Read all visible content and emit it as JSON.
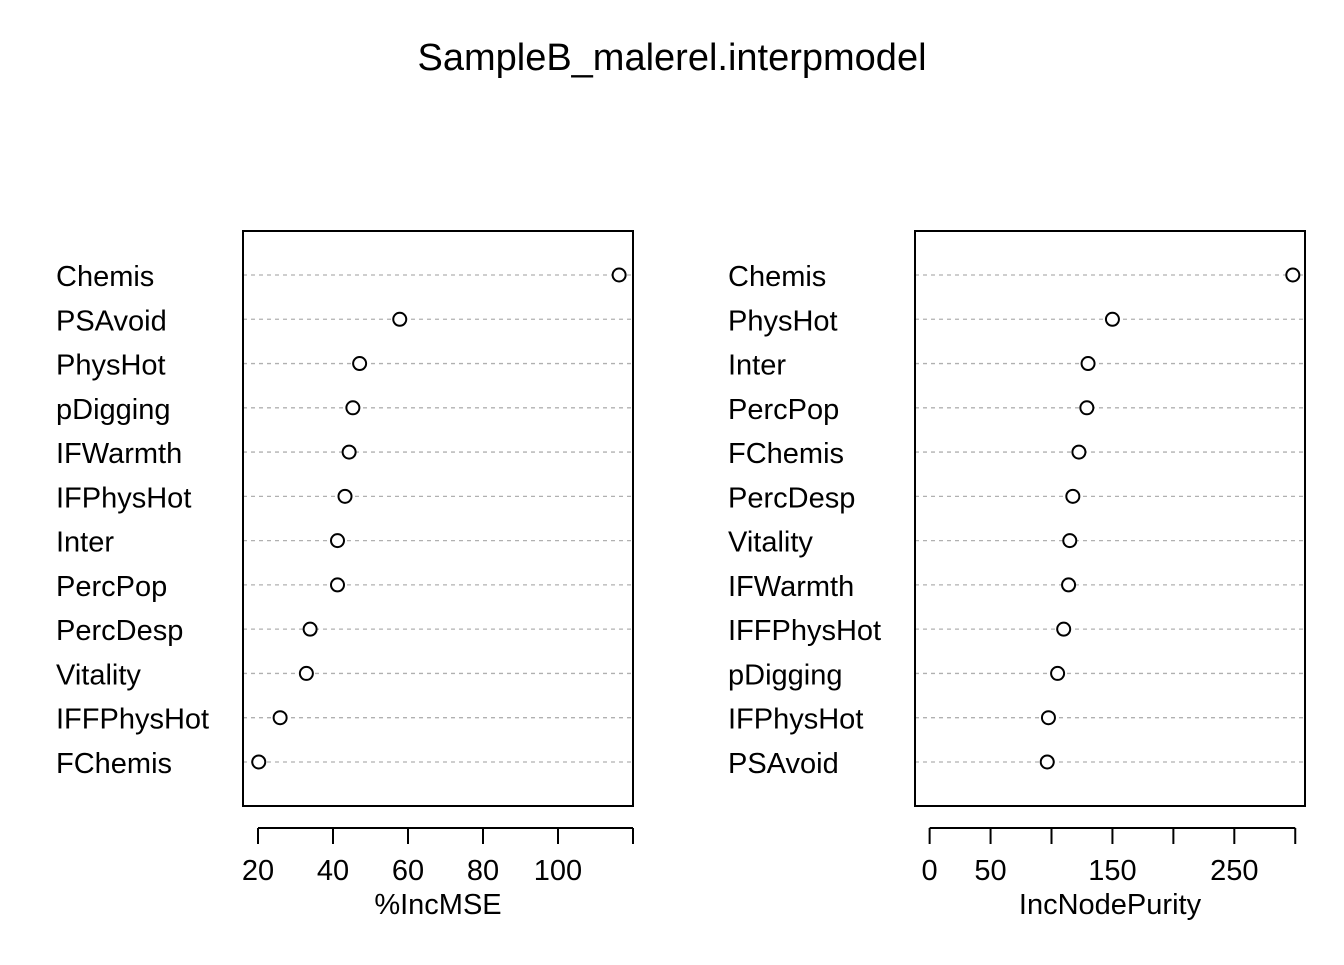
{
  "title": "SampleB_malerel.interpmodel",
  "chart_data": [
    {
      "type": "scatter",
      "xlabel": "%IncMSE",
      "xlim": [
        16,
        120
      ],
      "xticks": [
        20,
        40,
        60,
        80,
        100
      ],
      "xtick_labels": [
        "20",
        "40",
        "60",
        "80",
        "100"
      ],
      "axis_extent": [
        20,
        120
      ],
      "categories": [
        "Chemis",
        "PSAvoid",
        "PhysHot",
        "pDigging",
        "IFWarmth",
        "IFPhysHot",
        "Inter",
        "PercPop",
        "PercDesp",
        "Vitality",
        "IFFPhysHot",
        "FChemis"
      ],
      "values": [
        116.3,
        57.8,
        47.1,
        45.3,
        44.3,
        43.2,
        41.2,
        41.2,
        33.9,
        32.9,
        25.9,
        20.2
      ],
      "grid": "dotted per row"
    },
    {
      "type": "scatter",
      "xlabel": "IncNodePurity",
      "xlim": [
        -12,
        308
      ],
      "xticks": [
        0,
        50,
        150,
        250
      ],
      "xtick_labels": [
        "0",
        "50",
        "150",
        "250"
      ],
      "minor_ticks": [
        0,
        50,
        100,
        150,
        200,
        250,
        300
      ],
      "axis_extent": [
        0,
        300
      ],
      "categories": [
        "Chemis",
        "PhysHot",
        "Inter",
        "PercPop",
        "FChemis",
        "PercDesp",
        "Vitality",
        "IFWarmth",
        "IFFPhysHot",
        "pDigging",
        "IFPhysHot",
        "PSAvoid"
      ],
      "values": [
        298.0,
        150.0,
        130.0,
        129.0,
        122.5,
        117.5,
        115.0,
        114.0,
        110.0,
        105.0,
        97.5,
        96.5
      ],
      "grid": "dotted per row"
    }
  ]
}
